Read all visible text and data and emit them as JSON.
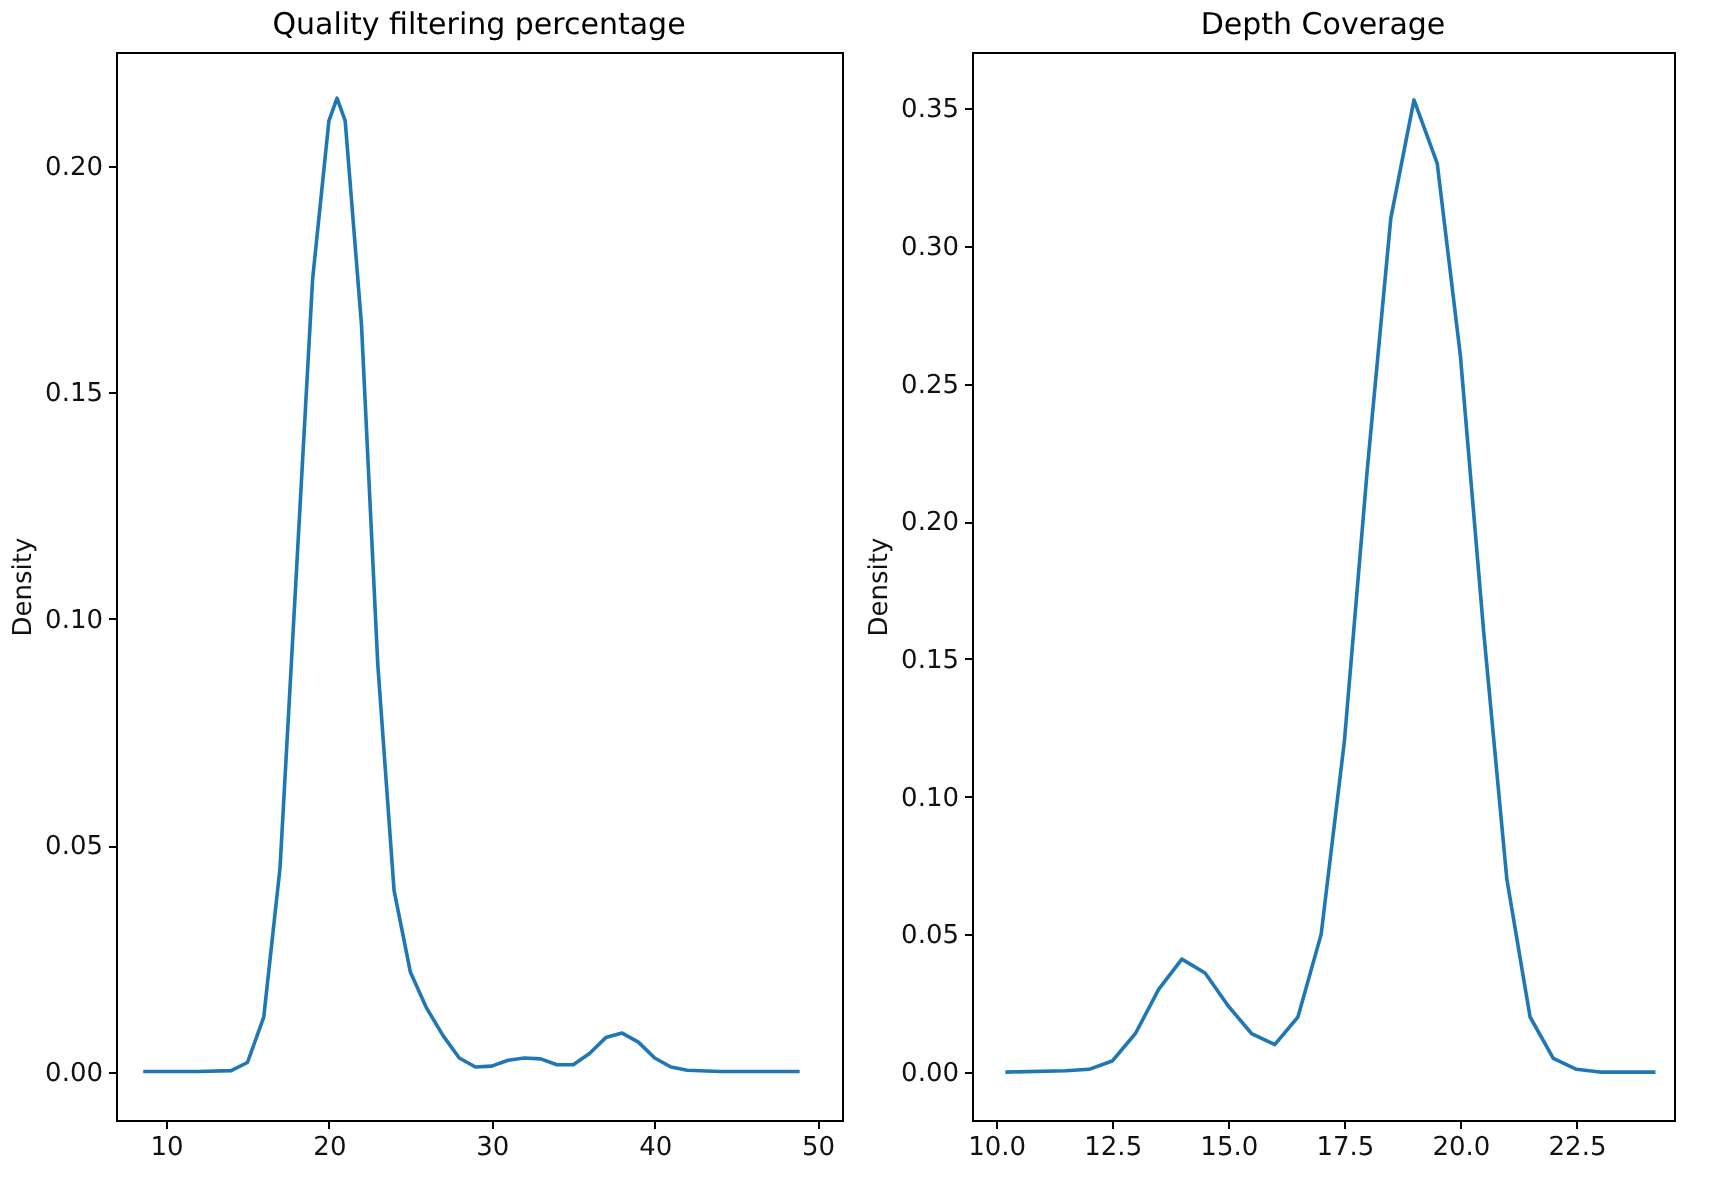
{
  "chart_data": [
    {
      "type": "line",
      "title": "Quality filtering percentage",
      "ylabel": "Density",
      "color": "#1f77b4",
      "xlim": [
        6.93,
        51.5
      ],
      "ylim": [
        -0.0107,
        0.2252
      ],
      "xticks": [
        10,
        20,
        30,
        40,
        50
      ],
      "yticks": [
        {
          "value": 0,
          "label": "0.00"
        },
        {
          "value": 0.05,
          "label": "0.05"
        },
        {
          "value": 0.1,
          "label": "0.10"
        },
        {
          "value": 0.15,
          "label": "0.15"
        },
        {
          "value": 0.2,
          "label": "0.20"
        }
      ],
      "x": [
        8.6,
        12,
        14,
        15,
        16,
        17,
        18,
        19,
        20,
        20.5,
        21,
        22,
        23,
        24,
        25,
        26,
        27,
        28,
        29,
        30,
        31,
        32,
        33,
        34,
        35,
        36,
        37,
        38,
        39,
        40,
        41,
        42,
        44,
        48.9
      ],
      "values": [
        0,
        0,
        0.0002,
        0.002,
        0.012,
        0.045,
        0.11,
        0.175,
        0.21,
        0.215,
        0.21,
        0.165,
        0.09,
        0.04,
        0.022,
        0.014,
        0.008,
        0.003,
        0.001,
        0.0012,
        0.0025,
        0.003,
        0.0028,
        0.0015,
        0.0015,
        0.004,
        0.0075,
        0.0085,
        0.0065,
        0.003,
        0.001,
        0.0003,
        0,
        0
      ]
    },
    {
      "type": "line",
      "title": "Depth Coverage",
      "ylabel": "Density",
      "color": "#1f77b4",
      "xlim": [
        9.48,
        24.6
      ],
      "ylim": [
        -0.0174,
        0.3704
      ],
      "xticks": [
        {
          "value": 10,
          "label": "10.0"
        },
        {
          "value": 12.5,
          "label": "12.5"
        },
        {
          "value": 15,
          "label": "15.0"
        },
        {
          "value": 17.5,
          "label": "17.5"
        },
        {
          "value": 20,
          "label": "20.0"
        },
        {
          "value": 22.5,
          "label": "22.5"
        }
      ],
      "yticks": [
        {
          "value": 0,
          "label": "0.00"
        },
        {
          "value": 0.05,
          "label": "0.05"
        },
        {
          "value": 0.1,
          "label": "0.10"
        },
        {
          "value": 0.15,
          "label": "0.15"
        },
        {
          "value": 0.2,
          "label": "0.20"
        },
        {
          "value": 0.25,
          "label": "0.25"
        },
        {
          "value": 0.3,
          "label": "0.30"
        },
        {
          "value": 0.35,
          "label": "0.35"
        }
      ],
      "x": [
        10.2,
        11.5,
        12,
        12.5,
        13,
        13.5,
        14,
        14.5,
        15,
        15.5,
        16,
        16.5,
        17,
        17.5,
        18,
        18.5,
        19,
        19.5,
        20,
        20.5,
        21,
        21.5,
        22,
        22.5,
        23,
        24.2
      ],
      "values": [
        0,
        0.0005,
        0.001,
        0.004,
        0.014,
        0.03,
        0.041,
        0.036,
        0.024,
        0.014,
        0.01,
        0.02,
        0.05,
        0.12,
        0.22,
        0.31,
        0.353,
        0.33,
        0.26,
        0.16,
        0.07,
        0.02,
        0.005,
        0.001,
        0,
        0
      ]
    }
  ]
}
